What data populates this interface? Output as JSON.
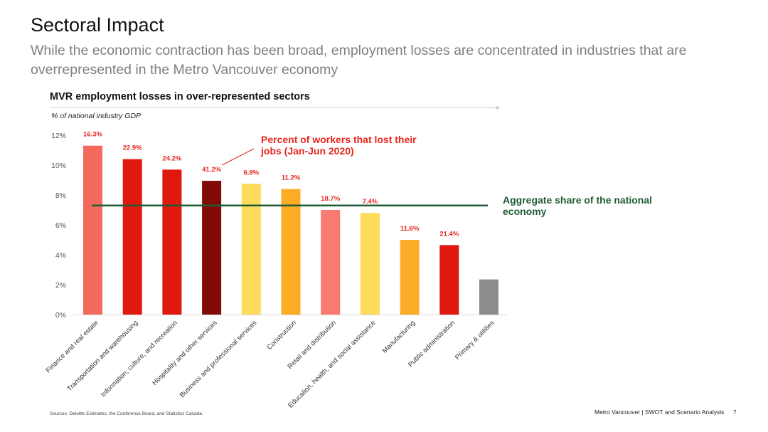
{
  "slide": {
    "title": "Sectoral Impact",
    "subtitle": "While the economic contraction has been broad, employment losses are concentrated in industries that are overrepresented in the Metro Vancouver economy",
    "footer": "Metro Vancouver | SWOT and Scenario Analysis",
    "page_number": "7",
    "source": "Sources: Deloitte Estimates, the Conference Board, and Statistics Canada."
  },
  "chart_data": {
    "type": "bar",
    "title": "MVR employment losses in over-represented sectors",
    "ylabel": "% of national industry GDP",
    "ylim": [
      0,
      12
    ],
    "yticks": [
      "0%",
      "2%",
      "4%",
      "6%",
      "8%",
      "10%",
      "12%"
    ],
    "categories": [
      "Finance and real estate",
      "Transportation and warehousing",
      "Information, culture, and recreation",
      "Hospitality and other services",
      "Business and professional services",
      "Construction",
      "Retail and distribution",
      "Education, health, and social assistance",
      "Manufacturing",
      "Public administration",
      "Primary & utilities"
    ],
    "values": [
      11.3,
      10.4,
      9.7,
      8.95,
      8.75,
      8.4,
      7.0,
      6.8,
      5.0,
      4.65,
      2.35
    ],
    "data_labels": [
      "16.3%",
      "22.9%",
      "24.2%",
      "41.2%",
      "6.8%",
      "11.2%",
      "18.7%",
      "7.4%",
      "11.6%",
      "21.4%",
      ""
    ],
    "colors": [
      "#f46b5e",
      "#e0190f",
      "#e0190f",
      "#800c05",
      "#fedb5a",
      "#fdac27",
      "#f87a70",
      "#fedb5a",
      "#fdac27",
      "#e0190f",
      "#8c8c8c"
    ],
    "label_color": "#e8261e",
    "reference_line": {
      "value": 7.3,
      "color": "#1f5c35",
      "label": "Aggregate share of the national economy"
    },
    "annotation": {
      "text": "Percent of workers that lost their jobs (Jan-Jun 2020)",
      "color": "#e8261e"
    },
    "grid": false,
    "legend": "none"
  }
}
